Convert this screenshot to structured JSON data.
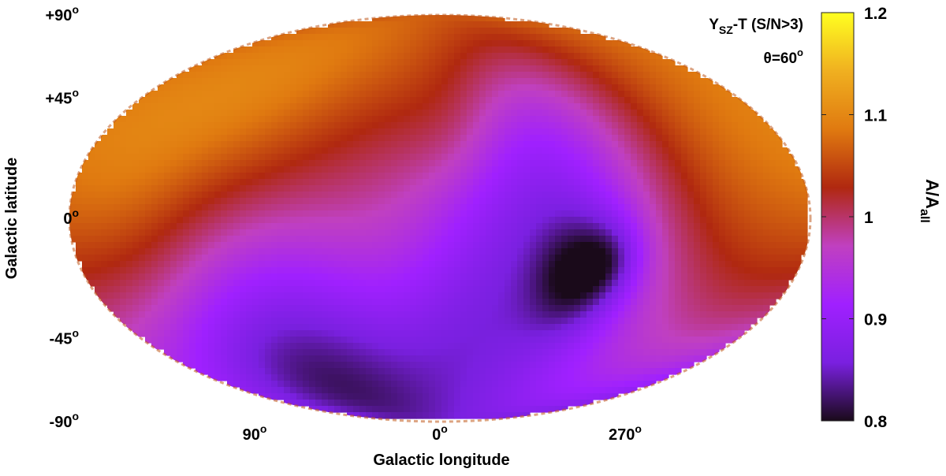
{
  "chart_data": {
    "type": "heatmap",
    "projection": "mollweide",
    "title_main": "Y",
    "title_sub": "SZ",
    "title_rest": "-T (S/N>3)",
    "annotation": "θ=60",
    "annotation_sup": "o",
    "xlabel": "Galactic longitude",
    "ylabel": "Galactic latitude",
    "x_ticks": [
      {
        "text": "90",
        "sup": "o",
        "lon": 90
      },
      {
        "text": "0",
        "sup": "o",
        "lon": 0
      },
      {
        "text": "270",
        "sup": "o",
        "lon": 270
      }
    ],
    "y_ticks": [
      {
        "text": "+90",
        "sup": "o",
        "lat": 90
      },
      {
        "text": "+45",
        "sup": "o",
        "lat": 45
      },
      {
        "text": "0",
        "sup": "o",
        "lat": 0
      },
      {
        "text": "-45",
        "sup": "o",
        "lat": -45
      },
      {
        "text": "-90",
        "sup": "o",
        "lat": -90
      }
    ],
    "colorbar": {
      "label_main": "A/A",
      "label_sub": "all",
      "range": [
        0.8,
        1.2
      ],
      "ticks": [
        {
          "text": "1.2",
          "value": 1.2
        },
        {
          "text": "1.1",
          "value": 1.1
        },
        {
          "text": "1",
          "value": 1.0
        },
        {
          "text": "0.9",
          "value": 0.9
        },
        {
          "text": "0.8",
          "value": 0.8
        }
      ],
      "colors": [
        "#1a0a1a",
        "#7a20e0",
        "#a020ff",
        "#c040c0",
        "#b02810",
        "#e07a10",
        "#f0b020",
        "#ffff20"
      ]
    },
    "base_value": 1.01,
    "regions": [
      {
        "lon": 200,
        "lat": 40,
        "sigma": 40,
        "amp": 0.06
      },
      {
        "lon": 100,
        "lat": 45,
        "sigma": 30,
        "amp": 0.06
      },
      {
        "lon": 150,
        "lat": 10,
        "sigma": 28,
        "amp": 0.04
      },
      {
        "lon": 10,
        "lat": 60,
        "sigma": 25,
        "amp": 0.04
      },
      {
        "lon": 90,
        "lat": -45,
        "sigma": 35,
        "amp": -0.08
      },
      {
        "lon": 60,
        "lat": -60,
        "sigma": 35,
        "amp": -0.07
      },
      {
        "lon": 130,
        "lat": -70,
        "sigma": 25,
        "amp": -0.05
      },
      {
        "lon": 300,
        "lat": -25,
        "sigma": 45,
        "amp": -0.09
      },
      {
        "lon": 320,
        "lat": 20,
        "sigma": 35,
        "amp": -0.07
      },
      {
        "lon": 290,
        "lat": -20,
        "sigma": 15,
        "amp": -0.1
      },
      {
        "lon": 275,
        "lat": -15,
        "sigma": 10,
        "amp": -0.05
      },
      {
        "lon": 345,
        "lat": -40,
        "sigma": 25,
        "amp": -0.04
      },
      {
        "lon": 350,
        "lat": 30,
        "sigma": 18,
        "amp": 0.03
      },
      {
        "lon": 220,
        "lat": 0,
        "sigma": 30,
        "amp": 0.02
      }
    ]
  }
}
